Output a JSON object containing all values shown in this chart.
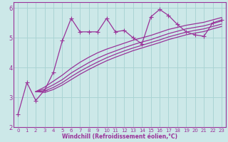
{
  "bg_color": "#cce8e8",
  "grid_color": "#aad4d4",
  "line_color": "#993399",
  "xlabel": "Windchill (Refroidissement éolien,°C)",
  "xlim": [
    -0.5,
    23.5
  ],
  "ylim": [
    2.0,
    6.2
  ],
  "yticks": [
    2,
    3,
    4,
    5,
    6
  ],
  "xticks": [
    0,
    1,
    2,
    3,
    4,
    5,
    6,
    7,
    8,
    9,
    10,
    11,
    12,
    13,
    14,
    15,
    16,
    17,
    18,
    19,
    20,
    21,
    22,
    23
  ],
  "series1_x": [
    0,
    1,
    2,
    3,
    4,
    5,
    6,
    7,
    8,
    9,
    10,
    11,
    12,
    13,
    14,
    15,
    16,
    17,
    18,
    19,
    20,
    21,
    22,
    23
  ],
  "series1_y": [
    2.45,
    3.5,
    2.9,
    3.25,
    3.85,
    4.9,
    5.65,
    5.2,
    5.2,
    5.2,
    5.65,
    5.2,
    5.25,
    5.0,
    4.8,
    5.7,
    5.95,
    5.75,
    5.45,
    5.2,
    5.1,
    5.05,
    5.5,
    5.6
  ],
  "series2_x": [
    2,
    3,
    4,
    5,
    6,
    7,
    8,
    9,
    10,
    11,
    12,
    13,
    14,
    15,
    16,
    17,
    18,
    19,
    20,
    21,
    22,
    23
  ],
  "series2_y": [
    3.2,
    3.35,
    3.55,
    3.75,
    3.98,
    4.18,
    4.35,
    4.5,
    4.62,
    4.72,
    4.82,
    4.92,
    5.0,
    5.08,
    5.18,
    5.28,
    5.35,
    5.42,
    5.47,
    5.52,
    5.6,
    5.68
  ],
  "series3_x": [
    2,
    3,
    4,
    5,
    6,
    7,
    8,
    9,
    10,
    11,
    12,
    13,
    14,
    15,
    16,
    17,
    18,
    19,
    20,
    21,
    22,
    23
  ],
  "series3_y": [
    3.2,
    3.28,
    3.43,
    3.6,
    3.82,
    4.0,
    4.17,
    4.32,
    4.45,
    4.56,
    4.67,
    4.77,
    4.86,
    4.94,
    5.04,
    5.14,
    5.22,
    5.3,
    5.35,
    5.4,
    5.48,
    5.56
  ],
  "series4_x": [
    2,
    3,
    4,
    5,
    6,
    7,
    8,
    9,
    10,
    11,
    12,
    13,
    14,
    15,
    16,
    17,
    18,
    19,
    20,
    21,
    22,
    23
  ],
  "series4_y": [
    3.2,
    3.22,
    3.34,
    3.5,
    3.7,
    3.88,
    4.04,
    4.19,
    4.33,
    4.45,
    4.56,
    4.66,
    4.75,
    4.84,
    4.93,
    5.03,
    5.11,
    5.19,
    5.25,
    5.3,
    5.38,
    5.46
  ],
  "series5_x": [
    2,
    3,
    4,
    5,
    6,
    7,
    8,
    9,
    10,
    11,
    12,
    13,
    14,
    15,
    16,
    17,
    18,
    19,
    20,
    21,
    22,
    23
  ],
  "series5_y": [
    3.2,
    3.17,
    3.27,
    3.42,
    3.6,
    3.78,
    3.94,
    4.09,
    4.23,
    4.35,
    4.46,
    4.57,
    4.66,
    4.75,
    4.84,
    4.94,
    5.02,
    5.1,
    5.16,
    5.21,
    5.3,
    5.38
  ]
}
